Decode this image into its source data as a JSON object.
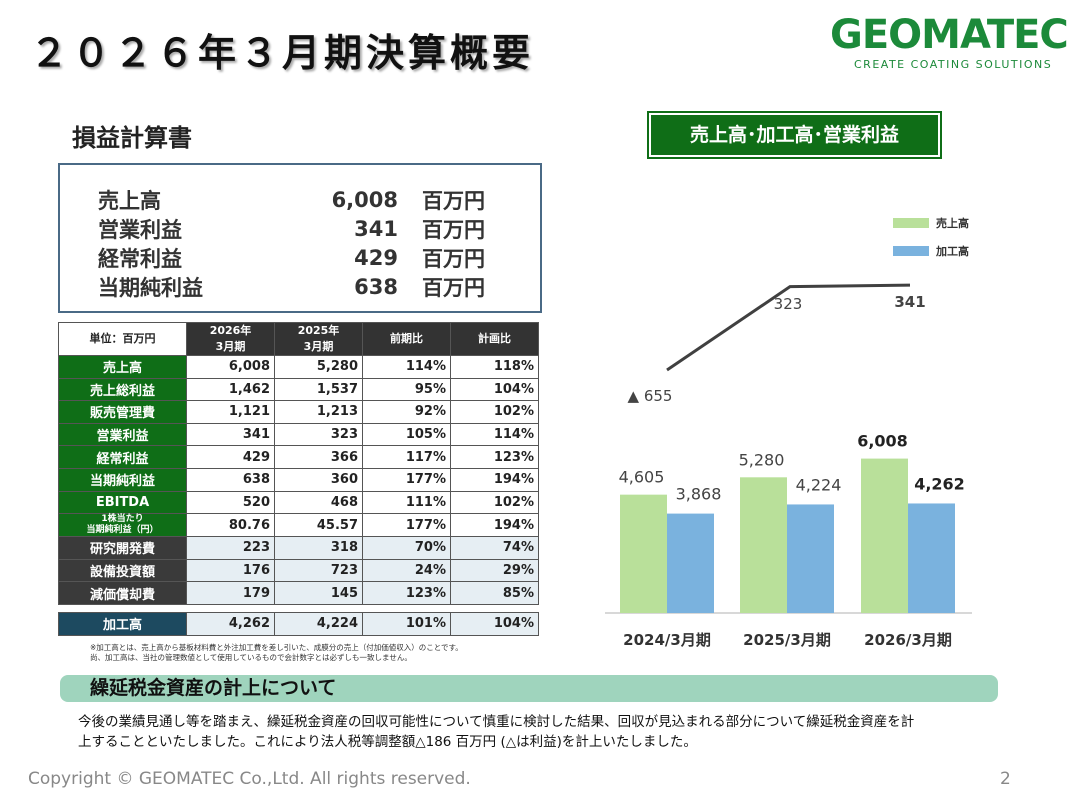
{
  "title": "２０２６年３月期決算概要",
  "logo": {
    "name": "GEOMATEC",
    "tagline": "CREATE COATING SOLUTIONS"
  },
  "section_title": "損益計算書",
  "summary": [
    {
      "label": "売上高",
      "value": "6,008",
      "unit": "百万円"
    },
    {
      "label": "営業利益",
      "value": "341",
      "unit": "百万円"
    },
    {
      "label": "経常利益",
      "value": "429",
      "unit": "百万円"
    },
    {
      "label": "当期純利益",
      "value": "638",
      "unit": "百万円"
    }
  ],
  "table": {
    "unit_label": "単位：百万円",
    "col_2026_a": "2026年",
    "col_2026_b": "3月期",
    "col_2025_a": "2025年",
    "col_2025_b": "3月期",
    "col_yoy": "前期比",
    "col_plan": "計画比",
    "rows": [
      {
        "label": "売上高",
        "v2026": "6,008",
        "v2025": "5,280",
        "yoy": "114%",
        "plan": "118%"
      },
      {
        "label": "売上総利益",
        "v2026": "1,462",
        "v2025": "1,537",
        "yoy": "95%",
        "plan": "104%"
      },
      {
        "label": "販売管理費",
        "v2026": "1,121",
        "v2025": "1,213",
        "yoy": "92%",
        "plan": "102%"
      },
      {
        "label": "営業利益",
        "v2026": "341",
        "v2025": "323",
        "yoy": "105%",
        "plan": "114%"
      },
      {
        "label": "経常利益",
        "v2026": "429",
        "v2025": "366",
        "yoy": "117%",
        "plan": "123%"
      },
      {
        "label": "当期純利益",
        "v2026": "638",
        "v2025": "360",
        "yoy": "177%",
        "plan": "194%"
      },
      {
        "label": "EBITDA",
        "v2026": "520",
        "v2025": "468",
        "yoy": "111%",
        "plan": "102%"
      },
      {
        "label_a": "1株当たり",
        "label_b": "当期純利益（円）",
        "v2026": "80.76",
        "v2025": "45.57",
        "yoy": "177%",
        "plan": "194%"
      },
      {
        "label": "研究開発費",
        "v2026": "223",
        "v2025": "318",
        "yoy": "70%",
        "plan": "74%"
      },
      {
        "label": "設備投資額",
        "v2026": "176",
        "v2025": "723",
        "yoy": "24%",
        "plan": "29%"
      },
      {
        "label": "減価償却費",
        "v2026": "179",
        "v2025": "145",
        "yoy": "123%",
        "plan": "85%"
      },
      {
        "label": "加工高",
        "v2026": "4,262",
        "v2025": "4,224",
        "yoy": "101%",
        "plan": "104%"
      }
    ]
  },
  "note_line1": "※加工高とは、売上高から基板材料費と外注加工費を差し引いた、成膜分の売上（付加価値収入）のことです。",
  "note_line2": "尚、加工高は、当社の管理数値として使用しているもので会計数字とは必ずしも一致しません。",
  "banner_title": "繰延税金資産の計上について",
  "body_line1": "今後の業績見通し等を踏まえ、繰延税金資産の回収可能性について慎重に検討した結果、回収が見込まれる部分について繰延税金資産を計",
  "body_line2": "上することといたしました。これにより法人税等調整額△186 百万円 (△は利益)を計上いたしました。",
  "footer": "Copyright © GEOMATEC Co.,Ltd. All rights reserved.",
  "page_number": "2",
  "chart_title": "売上高･加工高･営業利益",
  "colors": {
    "sales": "#b9e09a",
    "processing": "#7ab2de",
    "line": "#404040",
    "green": "#0f6e17"
  },
  "chart_data": {
    "type": "bar",
    "categories": [
      "2024/3月期",
      "2025/3月期",
      "2026/3月期"
    ],
    "series": [
      {
        "name": "売上高",
        "values": [
          4605,
          5280,
          6008
        ],
        "labels": [
          "4,605",
          "5,280",
          "6,008"
        ]
      },
      {
        "name": "加工高",
        "values": [
          3868,
          4224,
          4262
        ],
        "labels": [
          "3,868",
          "4,224",
          "4,262"
        ]
      }
    ],
    "line_series": {
      "values": [
        -655,
        323,
        341
      ],
      "labels": [
        "▲ 655",
        "323",
        "341"
      ]
    },
    "legend_position": "top-right",
    "grid": false
  }
}
